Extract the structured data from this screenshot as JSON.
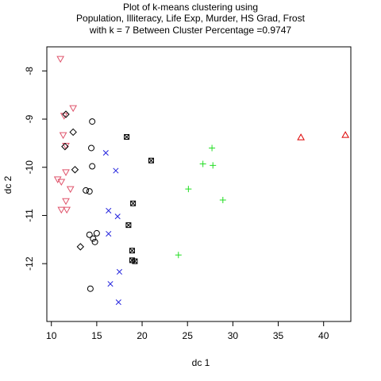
{
  "chart_data": {
    "type": "scatter",
    "title": [
      "Plot of k-means clustering using",
      "Population, Illiteracy, Life Exp, Murder, HS Grad, Frost",
      "with  k = 7 Between Cluster Percentage =0.9747"
    ],
    "xlabel": "dc 1",
    "ylabel": "dc 2",
    "xlim": [
      9.5,
      43.0
    ],
    "ylim": [
      -13.2,
      -7.5
    ],
    "xticks": [
      10,
      15,
      20,
      25,
      30,
      35,
      40
    ],
    "yticks": [
      -12,
      -11,
      -10,
      -9,
      -8
    ],
    "grid": false,
    "legend": "none",
    "series": [
      {
        "marker": "circle",
        "color": "#000000",
        "points": [
          [
            14.5,
            -9.05
          ],
          [
            14.4,
            -9.6
          ],
          [
            14.5,
            -9.98
          ],
          [
            13.8,
            -10.48
          ],
          [
            14.2,
            -10.5
          ],
          [
            15.0,
            -11.37
          ],
          [
            14.2,
            -11.4
          ],
          [
            14.6,
            -11.48
          ],
          [
            14.8,
            -11.55
          ],
          [
            14.3,
            -12.52
          ]
        ]
      },
      {
        "marker": "triangle-down",
        "color": "#DF536B",
        "points": [
          [
            11.0,
            -7.75
          ],
          [
            12.4,
            -8.77
          ],
          [
            11.4,
            -8.93
          ],
          [
            11.3,
            -9.33
          ],
          [
            11.6,
            -9.55
          ],
          [
            11.6,
            -10.1
          ],
          [
            10.7,
            -10.25
          ],
          [
            11.1,
            -10.3
          ],
          [
            12.1,
            -10.45
          ],
          [
            11.6,
            -10.7
          ],
          [
            11.1,
            -10.88
          ],
          [
            11.7,
            -10.88
          ]
        ]
      },
      {
        "marker": "diamond",
        "color": "#000000",
        "points": [
          [
            11.6,
            -8.9
          ],
          [
            12.4,
            -9.27
          ],
          [
            11.5,
            -9.57
          ],
          [
            12.6,
            -10.05
          ],
          [
            13.2,
            -11.65
          ]
        ]
      },
      {
        "marker": "x",
        "color": "#2222DD",
        "points": [
          [
            16.0,
            -9.7
          ],
          [
            17.1,
            -10.07
          ],
          [
            16.3,
            -10.9
          ],
          [
            17.3,
            -11.02
          ],
          [
            16.3,
            -11.38
          ],
          [
            17.5,
            -12.17
          ],
          [
            16.5,
            -12.42
          ],
          [
            17.4,
            -12.8
          ]
        ]
      },
      {
        "marker": "boxx",
        "color": "#000000",
        "points": [
          [
            18.3,
            -9.37
          ],
          [
            21.0,
            -9.86
          ],
          [
            19.0,
            -10.75
          ],
          [
            18.5,
            -11.2
          ],
          [
            18.9,
            -11.73
          ],
          [
            18.9,
            -11.93
          ],
          [
            19.2,
            -11.95
          ]
        ]
      },
      {
        "marker": "plus",
        "color": "#22DD22",
        "points": [
          [
            27.7,
            -9.6
          ],
          [
            26.7,
            -9.93
          ],
          [
            27.8,
            -9.96
          ],
          [
            25.1,
            -10.45
          ],
          [
            28.9,
            -10.68
          ],
          [
            24.0,
            -11.82
          ]
        ]
      },
      {
        "marker": "triangle-up",
        "color": "#DD0000",
        "points": [
          [
            37.5,
            -9.38
          ],
          [
            42.4,
            -9.33
          ]
        ]
      }
    ]
  }
}
